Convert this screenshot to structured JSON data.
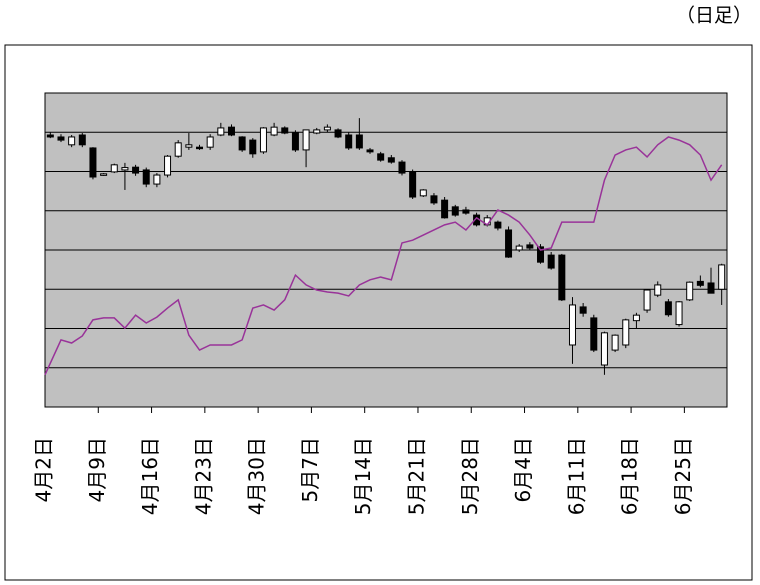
{
  "chart_data": {
    "type": "candlestick",
    "title": "（日足）",
    "categories": [
      "4月2日",
      null,
      null,
      null,
      null,
      "4月9日",
      null,
      null,
      null,
      null,
      "4月16日",
      null,
      null,
      null,
      null,
      "4月23日",
      null,
      null,
      null,
      null,
      "4月30日",
      null,
      null,
      null,
      null,
      "5月7日",
      null,
      null,
      null,
      null,
      "5月14日",
      null,
      null,
      null,
      null,
      "5月21日",
      null,
      null,
      null,
      null,
      "5月28日",
      null,
      null,
      null,
      null,
      "6月4日",
      null,
      null,
      null,
      null,
      "6月11日",
      null,
      null,
      null,
      null,
      "6月18日",
      null,
      null,
      null,
      null,
      "6月25日",
      null,
      null,
      null
    ],
    "open": [
      6.93,
      6.88,
      6.68,
      6.93,
      6.6,
      5.91,
      5.99,
      6.04,
      6.11,
      6.04,
      5.68,
      5.91,
      6.39,
      6.62,
      6.62,
      6.62,
      6.93,
      7.13,
      6.88,
      6.8,
      6.5,
      6.93,
      7.11,
      6.98,
      6.55,
      6.98,
      7.06,
      7.06,
      6.93,
      6.93,
      6.55,
      6.45,
      6.35,
      6.24,
      5.99,
      5.38,
      5.38,
      5.27,
      5.1,
      5.02,
      4.89,
      4.64,
      4.71,
      4.51,
      4.0,
      4.13,
      4.08,
      3.87,
      3.87,
      1.58,
      2.55,
      2.27,
      1.07,
      1.45,
      1.58,
      2.2,
      2.47,
      2.85,
      2.68,
      2.1,
      2.73,
      3.2,
      3.16,
      3.0
    ],
    "high": [
      7.0,
      6.95,
      6.93,
      6.98,
      6.62,
      5.96,
      6.2,
      6.22,
      6.17,
      6.1,
      5.96,
      6.42,
      6.8,
      6.98,
      6.68,
      6.95,
      7.24,
      7.2,
      6.9,
      6.85,
      7.13,
      7.24,
      7.15,
      7.05,
      7.06,
      7.11,
      7.2,
      7.1,
      7.0,
      7.36,
      6.6,
      6.5,
      6.42,
      6.29,
      6.05,
      5.55,
      5.45,
      5.35,
      5.15,
      5.1,
      4.95,
      4.89,
      4.75,
      4.6,
      4.15,
      4.2,
      4.15,
      3.95,
      3.9,
      2.8,
      2.65,
      2.35,
      1.92,
      1.85,
      2.25,
      2.4,
      3.0,
      3.2,
      2.75,
      2.7,
      3.2,
      3.35,
      3.55,
      3.65
    ],
    "low": [
      6.85,
      6.75,
      6.62,
      6.62,
      5.8,
      5.89,
      5.96,
      5.53,
      5.89,
      5.6,
      5.6,
      5.85,
      6.35,
      6.55,
      6.55,
      6.55,
      6.9,
      6.9,
      6.5,
      6.35,
      6.45,
      6.9,
      6.95,
      6.5,
      6.11,
      6.95,
      7.0,
      6.85,
      6.55,
      6.55,
      6.45,
      6.25,
      6.2,
      5.9,
      5.3,
      5.35,
      5.15,
      4.8,
      4.85,
      4.9,
      4.6,
      4.6,
      4.5,
      3.8,
      3.95,
      4.0,
      3.65,
      3.5,
      2.7,
      1.1,
      2.3,
      1.4,
      0.82,
      1.4,
      1.5,
      2.0,
      2.4,
      2.8,
      2.3,
      2.05,
      2.7,
      3.05,
      2.9,
      2.6
    ],
    "close": [
      6.88,
      6.8,
      6.88,
      6.68,
      5.86,
      5.94,
      6.17,
      6.1,
      5.96,
      5.68,
      5.91,
      6.39,
      6.73,
      6.68,
      6.6,
      6.88,
      7.11,
      6.93,
      6.55,
      6.45,
      7.11,
      7.13,
      6.98,
      6.55,
      7.06,
      7.06,
      7.13,
      6.88,
      6.6,
      6.6,
      6.5,
      6.29,
      6.24,
      5.96,
      5.35,
      5.53,
      5.2,
      4.82,
      4.89,
      4.94,
      4.64,
      4.82,
      4.56,
      3.82,
      4.1,
      4.05,
      3.69,
      3.54,
      2.73,
      2.6,
      2.39,
      1.45,
      1.89,
      1.83,
      2.22,
      2.34,
      2.98,
      3.11,
      2.35,
      2.68,
      3.18,
      3.1,
      2.9,
      3.62
    ],
    "up_color": "#ffffff",
    "down_color": "#000000",
    "line": {
      "color": "#993399",
      "values": [
        0.82,
        1.71,
        1.63,
        1.81,
        2.22,
        2.27,
        2.27,
        2.01,
        2.34,
        2.14,
        2.29,
        2.52,
        2.73,
        1.83,
        1.45,
        1.58,
        1.58,
        1.58,
        1.71,
        2.52,
        2.6,
        2.47,
        2.73,
        3.36,
        3.11,
        2.98,
        2.93,
        2.9,
        2.83,
        3.11,
        3.24,
        3.31,
        3.24,
        4.18,
        4.25,
        4.38,
        4.51,
        4.64,
        4.71,
        4.51,
        4.82,
        4.64,
        5.02,
        4.89,
        4.71,
        4.38,
        4.0,
        4.05,
        4.71,
        4.71,
        4.71,
        4.71,
        5.78,
        6.42,
        6.55,
        6.62,
        6.37,
        6.68,
        6.88,
        6.8,
        6.68,
        6.42,
        5.78,
        6.17
      ]
    },
    "ylim": [
      0,
      8
    ],
    "yticks": [
      0,
      1,
      2,
      3,
      4,
      5,
      6,
      7,
      8
    ],
    "grid": true
  }
}
